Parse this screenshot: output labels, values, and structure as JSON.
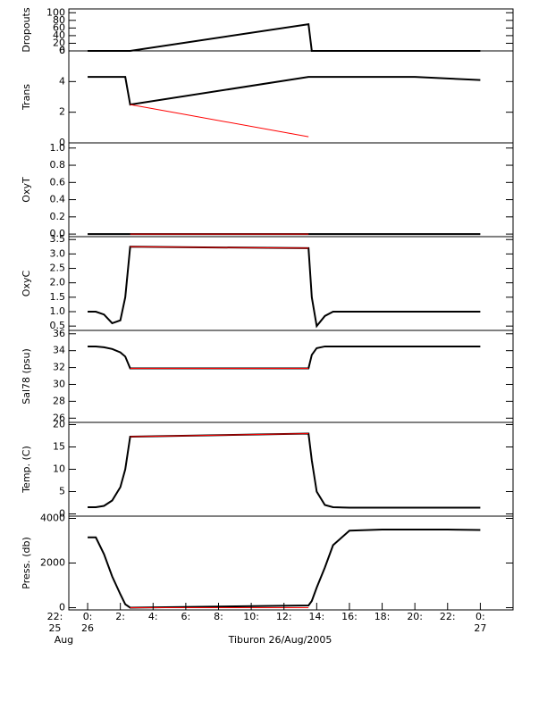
{
  "chart_data": [
    {
      "type": "line",
      "ylabel": "Dropouts",
      "x": [
        0,
        0.5,
        1,
        1.5,
        2,
        2.3,
        2.6,
        13.5,
        13.7,
        14,
        14.5,
        15,
        16,
        18,
        20,
        22,
        24
      ],
      "ylim": [
        0,
        110
      ],
      "yticks": [
        0,
        20,
        40,
        60,
        80,
        100
      ],
      "series": [
        {
          "color": "#000000",
          "values": [
            0,
            0,
            0,
            0,
            0,
            0,
            0,
            70,
            0,
            0,
            0,
            0,
            0,
            0,
            0,
            0,
            0
          ]
        },
        {
          "color": "#ff0000",
          "values": [
            null,
            null,
            null,
            null,
            null,
            null,
            0,
            0,
            null,
            null,
            null,
            null,
            null,
            null,
            null,
            null,
            null
          ]
        }
      ]
    },
    {
      "type": "line",
      "ylabel": "Trans",
      "x": [
        0,
        0.5,
        1,
        1.5,
        2,
        2.3,
        2.6,
        13.5,
        13.7,
        14,
        14.5,
        15,
        16,
        18,
        20,
        22,
        24
      ],
      "ylim": [
        0,
        6
      ],
      "yticks": [
        0,
        2,
        4,
        6
      ],
      "series": [
        {
          "color": "#000000",
          "values": [
            4.3,
            4.3,
            4.3,
            4.3,
            4.3,
            4.3,
            2.5,
            4.3,
            4.3,
            4.3,
            4.3,
            4.3,
            4.3,
            4.3,
            4.3,
            4.2,
            4.1
          ]
        },
        {
          "color": "#ff0000",
          "values": [
            null,
            null,
            null,
            null,
            null,
            null,
            2.5,
            0.4,
            null,
            null,
            null,
            null,
            null,
            null,
            null,
            null,
            null
          ]
        }
      ]
    },
    {
      "type": "line",
      "ylabel": "OxyT",
      "x": [
        0,
        0.5,
        1,
        1.5,
        2,
        2.3,
        2.6,
        13.5,
        13.7,
        14,
        14.5,
        15,
        16,
        18,
        20,
        22,
        24
      ],
      "ylim": [
        -0.03,
        1.06
      ],
      "yticks": [
        {
          "value": 0,
          "label": "0.0"
        },
        0.2,
        0.4,
        0.6,
        0.8,
        {
          "value": 1,
          "label": "1.0"
        }
      ],
      "series": [
        {
          "color": "#000000",
          "values": [
            0,
            0,
            0,
            0,
            0,
            0,
            0,
            0,
            0,
            0,
            0,
            0,
            0,
            0,
            0,
            0,
            0
          ]
        },
        {
          "color": "#ff0000",
          "values": [
            null,
            null,
            null,
            null,
            null,
            null,
            0,
            0,
            null,
            null,
            null,
            null,
            null,
            null,
            null,
            null,
            null
          ]
        }
      ]
    },
    {
      "type": "line",
      "ylabel": "OxyC",
      "x": [
        0,
        0.5,
        1,
        1.5,
        2,
        2.3,
        2.6,
        13.5,
        13.7,
        14,
        14.5,
        15,
        16,
        18,
        20,
        22,
        24
      ],
      "ylim": [
        0.35,
        3.6
      ],
      "yticks": [
        0.5,
        {
          "value": 1,
          "label": "1.0"
        },
        1.5,
        {
          "value": 2,
          "label": "2.0"
        },
        2.5,
        {
          "value": 3,
          "label": "3.0"
        },
        3.5
      ],
      "series": [
        {
          "color": "#000000",
          "values": [
            1,
            1,
            0.9,
            0.6,
            0.7,
            1.5,
            3.25,
            3.2,
            1.5,
            0.5,
            0.85,
            1,
            1,
            1,
            1,
            1,
            1
          ]
        },
        {
          "color": "#ff0000",
          "values": [
            null,
            null,
            null,
            null,
            null,
            null,
            3.25,
            3.2,
            null,
            null,
            null,
            null,
            null,
            null,
            null,
            null,
            null
          ]
        }
      ]
    },
    {
      "type": "line",
      "ylabel": "Sal78 (psu)",
      "x": [
        0,
        0.5,
        1,
        1.5,
        2,
        2.3,
        2.6,
        13.5,
        13.7,
        14,
        14.5,
        15,
        16,
        18,
        20,
        22,
        24
      ],
      "ylim": [
        25.5,
        36.4
      ],
      "yticks": [
        26,
        28,
        30,
        32,
        34,
        36
      ],
      "series": [
        {
          "color": "#000000",
          "values": [
            34.5,
            34.5,
            34.4,
            34.2,
            33.8,
            33.3,
            31.9,
            31.9,
            33.5,
            34.3,
            34.5,
            34.5,
            34.5,
            34.5,
            34.5,
            34.5,
            34.5
          ]
        },
        {
          "color": "#ff0000",
          "values": [
            null,
            null,
            null,
            null,
            null,
            null,
            31.9,
            31.9,
            null,
            null,
            null,
            null,
            null,
            null,
            null,
            null,
            null
          ]
        }
      ]
    },
    {
      "type": "line",
      "ylabel": "Temp. (C)",
      "x": [
        0,
        0.5,
        1,
        1.5,
        2,
        2.3,
        2.6,
        13.5,
        13.7,
        14,
        14.5,
        15,
        16,
        18,
        20,
        22,
        24
      ],
      "ylim": [
        -0.5,
        20.5
      ],
      "yticks": [
        0,
        5,
        10,
        15,
        20
      ],
      "series": [
        {
          "color": "#000000",
          "values": [
            1.5,
            1.5,
            1.8,
            3,
            6,
            10,
            17.3,
            18,
            12,
            5,
            2,
            1.5,
            1.4,
            1.4,
            1.4,
            1.4,
            1.4
          ]
        },
        {
          "color": "#ff0000",
          "values": [
            null,
            null,
            null,
            null,
            null,
            null,
            17.3,
            18,
            null,
            null,
            null,
            null,
            null,
            null,
            null,
            null,
            null
          ]
        }
      ]
    },
    {
      "type": "line",
      "ylabel": "Press. (db)",
      "x": [
        0,
        0.5,
        1,
        1.5,
        2,
        2.3,
        2.6,
        13.5,
        13.7,
        14,
        14.5,
        15,
        16,
        18,
        20,
        22,
        24
      ],
      "ylim": [
        -100,
        4100
      ],
      "yticks": [
        0,
        2000,
        4000
      ],
      "xlim": [
        -1.15,
        26
      ],
      "xlabel": "Tiburon 26/Aug/2005",
      "xticks": [
        {
          "value": -2,
          "label": "22:"
        },
        {
          "value": 0,
          "label": "0:"
        },
        {
          "value": 2,
          "label": "2:"
        },
        {
          "value": 4,
          "label": "4:"
        },
        {
          "value": 6,
          "label": "6:"
        },
        {
          "value": 8,
          "label": "8:"
        },
        {
          "value": 10,
          "label": "10:"
        },
        {
          "value": 12,
          "label": "12:"
        },
        {
          "value": 14,
          "label": "14:"
        },
        {
          "value": 16,
          "label": "16:"
        },
        {
          "value": 18,
          "label": "18:"
        },
        {
          "value": 20,
          "label": "20:"
        },
        {
          "value": 22,
          "label": "22:"
        },
        {
          "value": 24,
          "label": "0:"
        }
      ],
      "day_labels": [
        {
          "value": -2,
          "label": "25"
        },
        {
          "value": 0,
          "label": "26"
        },
        {
          "value": 24,
          "label": "27"
        }
      ],
      "month_label": {
        "value": -2,
        "label": "Aug"
      },
      "series": [
        {
          "color": "#000000",
          "values": [
            3150,
            3150,
            2400,
            1400,
            600,
            150,
            0,
            100,
            300,
            900,
            1800,
            2800,
            3450,
            3500,
            3500,
            3500,
            3480
          ]
        },
        {
          "color": "#ff0000",
          "values": [
            null,
            null,
            null,
            null,
            null,
            null,
            0,
            0,
            null,
            null,
            null,
            null,
            null,
            null,
            null,
            null,
            null
          ]
        }
      ]
    }
  ]
}
